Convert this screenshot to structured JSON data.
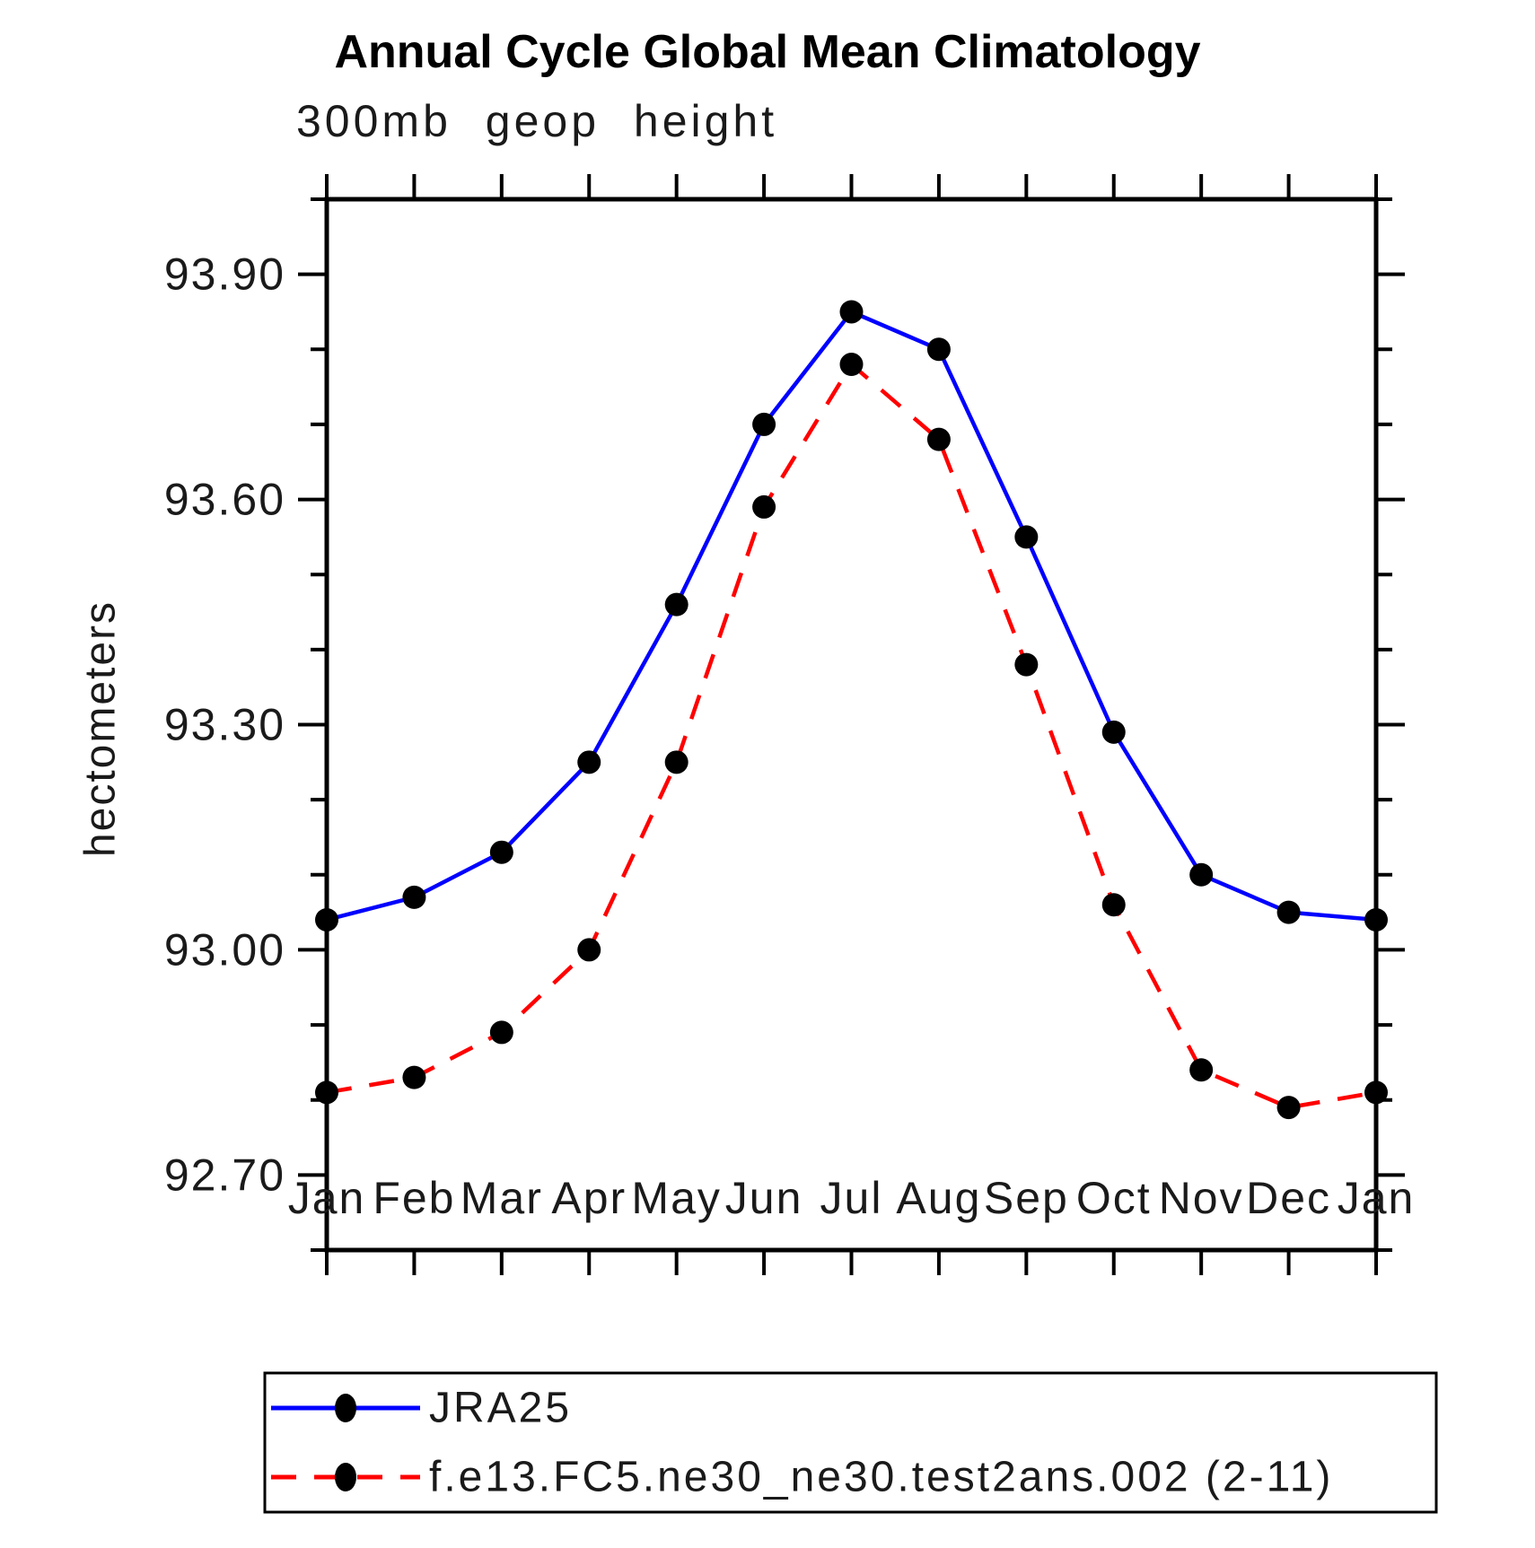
{
  "page": {
    "background": "#ffffff",
    "text_color": "#000000"
  },
  "chart_data": {
    "type": "line",
    "title": "Annual Cycle Global Mean Climatology",
    "subtitle": "300mb geop height",
    "ylabel": "hectometers",
    "xlabel": "",
    "x_categories": [
      "Jan",
      "Feb",
      "Mar",
      "Apr",
      "May",
      "Jun",
      "Jul",
      "Aug",
      "Sep",
      "Oct",
      "Nov",
      "Dec",
      "Jan"
    ],
    "ylim": [
      92.6,
      94.0
    ],
    "y_major_ticks": [
      92.7,
      93.0,
      93.3,
      93.6,
      93.9
    ],
    "y_major_tick_labels": [
      "92.70",
      "93.00",
      "93.30",
      "93.60",
      "93.90"
    ],
    "y_minor_tick_interval": 0.1,
    "grid": false,
    "legend_position": "bottom-left-box",
    "axis_color": "#000000",
    "marker_color": "#000000",
    "series": [
      {
        "name": "JRA25",
        "color": "#0000ff",
        "line_style": "solid",
        "marker": "circle",
        "values": [
          93.04,
          93.07,
          93.13,
          93.25,
          93.46,
          93.7,
          93.85,
          93.8,
          93.55,
          93.29,
          93.1,
          93.05,
          93.04
        ]
      },
      {
        "name": "f.e13.FC5.ne30_ne30.test2ans.002 (2-11)",
        "color": "#ff0000",
        "line_style": "dashed",
        "marker": "circle",
        "values": [
          92.81,
          92.83,
          92.89,
          93.0,
          93.25,
          93.59,
          93.78,
          93.68,
          93.38,
          93.06,
          92.84,
          92.79,
          92.81
        ]
      }
    ]
  }
}
